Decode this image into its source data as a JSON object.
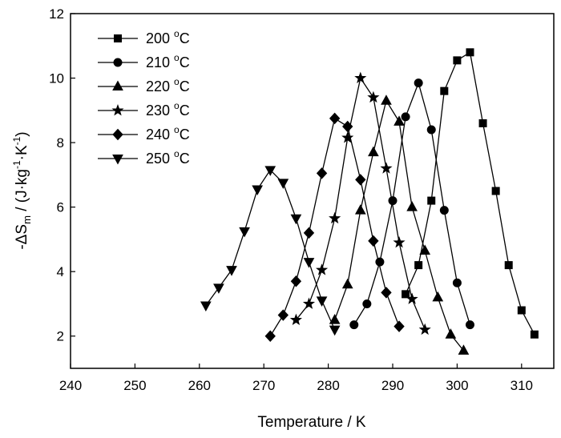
{
  "chart_data": {
    "type": "line",
    "xlabel": "Temperature / K",
    "ylabel_parts": [
      "-",
      "Δ",
      "S",
      "m",
      " / (J·kg",
      "-1",
      "·K",
      "-1",
      ")"
    ],
    "xlim": [
      240,
      315
    ],
    "ylim": [
      1,
      12
    ],
    "xticks": [
      240,
      250,
      260,
      270,
      280,
      290,
      300,
      310
    ],
    "yticks": [
      2,
      4,
      6,
      8,
      10,
      12
    ],
    "grid": false,
    "legend_position": "top-left",
    "series": [
      {
        "name": "200 °C",
        "label_num": "200",
        "label_unit": "C",
        "label_sup": "o",
        "marker": "square",
        "x": [
          292,
          294,
          296,
          298,
          300,
          302,
          304,
          306,
          308,
          310,
          312
        ],
        "y": [
          3.3,
          4.2,
          6.2,
          9.6,
          10.55,
          10.8,
          8.6,
          6.5,
          4.2,
          2.8,
          2.05
        ]
      },
      {
        "name": "210 °C",
        "label_num": "210",
        "label_unit": "C",
        "label_sup": "o",
        "marker": "circle",
        "x": [
          284,
          286,
          288,
          290,
          292,
          294,
          296,
          298,
          300,
          302
        ],
        "y": [
          2.35,
          3.0,
          4.3,
          6.2,
          8.8,
          9.85,
          8.4,
          5.9,
          3.65,
          2.35
        ]
      },
      {
        "name": "220 °C",
        "label_num": "220",
        "label_unit": "C",
        "label_sup": "o",
        "marker": "triangle-up",
        "x": [
          281,
          283,
          285,
          287,
          289,
          291,
          293,
          295,
          297,
          299,
          301
        ],
        "y": [
          2.5,
          3.6,
          5.9,
          7.7,
          9.3,
          8.65,
          6.0,
          4.65,
          3.2,
          2.05,
          1.55
        ]
      },
      {
        "name": "230 °C",
        "label_num": "230",
        "label_unit": "C",
        "label_sup": "o",
        "marker": "star",
        "x": [
          275,
          277,
          279,
          281,
          283,
          285,
          287,
          289,
          291,
          293,
          295
        ],
        "y": [
          2.5,
          3.0,
          4.05,
          5.65,
          8.15,
          10.0,
          9.4,
          7.2,
          4.9,
          3.15,
          2.2
        ]
      },
      {
        "name": "240 °C",
        "label_num": "240",
        "label_unit": "C",
        "label_sup": "o",
        "marker": "diamond",
        "x": [
          271,
          273,
          275,
          277,
          279,
          281,
          283,
          285,
          287,
          289,
          291
        ],
        "y": [
          2.0,
          2.65,
          3.7,
          5.2,
          7.05,
          8.75,
          8.5,
          6.85,
          4.95,
          3.35,
          2.3
        ]
      },
      {
        "name": "250 °C",
        "label_num": "250",
        "label_unit": "C",
        "label_sup": "o",
        "marker": "triangle-down",
        "x": [
          261,
          263,
          265,
          267,
          269,
          271,
          273,
          275,
          277,
          279,
          281
        ],
        "y": [
          2.95,
          3.5,
          4.05,
          5.25,
          6.55,
          7.15,
          6.75,
          5.65,
          4.3,
          3.1,
          2.2
        ]
      }
    ]
  }
}
